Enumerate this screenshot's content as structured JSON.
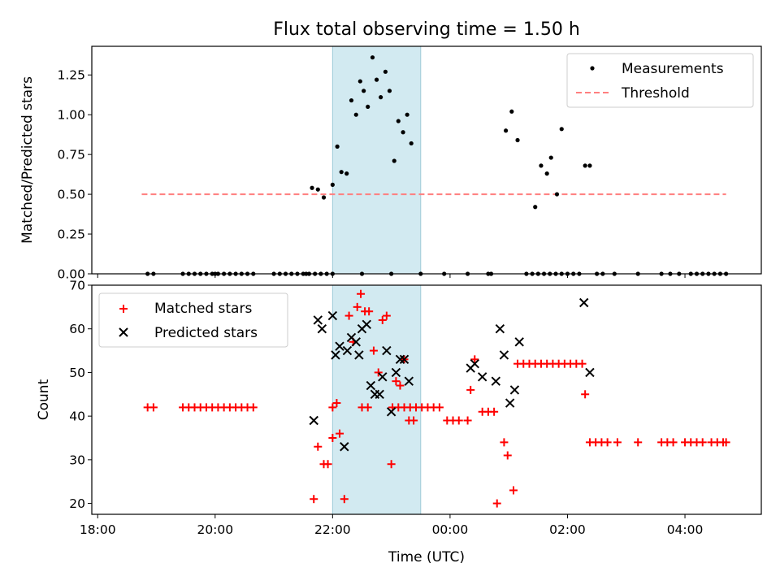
{
  "chart_data": [
    {
      "type": "scatter",
      "title": "Flux total observing time = 1.50 h",
      "xlabel": "",
      "ylabel": "Matched/Predicted stars",
      "x_unit": "hours_since_midnight_utc",
      "xlim": [
        -6.1,
        5.3
      ],
      "ylim": [
        0,
        1.43
      ],
      "yticks": [
        "0.00",
        "0.25",
        "0.50",
        "0.75",
        "1.00",
        "1.25"
      ],
      "highlight_span": [
        -2.0,
        -0.5
      ],
      "colors": {
        "measurements": "#000000",
        "threshold": "#ff7f7f",
        "span": "#add8e6"
      },
      "legend": {
        "position": "top-right",
        "entries": [
          "Measurements",
          "Threshold"
        ]
      },
      "threshold": {
        "label": "Threshold",
        "value": 0.5,
        "x": [
          -5.25,
          4.7
        ]
      },
      "series": [
        {
          "name": "Measurements",
          "points": [
            [
              -5.15,
              0
            ],
            [
              -5.05,
              0
            ],
            [
              -4.55,
              0
            ],
            [
              -4.45,
              0
            ],
            [
              -4.35,
              0
            ],
            [
              -4.25,
              0
            ],
            [
              -4.15,
              0
            ],
            [
              -4.05,
              0
            ],
            [
              -3.95,
              0
            ],
            [
              -3.85,
              0
            ],
            [
              -3.75,
              0
            ],
            [
              -3.65,
              0
            ],
            [
              -3.55,
              0
            ],
            [
              -3.45,
              0
            ],
            [
              -3.35,
              0
            ],
            [
              -4.0,
              0
            ],
            [
              -2.45,
              0
            ],
            [
              -2.0,
              0
            ],
            [
              -1.5,
              0
            ],
            [
              -1.0,
              0
            ],
            [
              -0.5,
              0
            ],
            [
              -2.1,
              0
            ],
            [
              -2.2,
              0
            ],
            [
              -2.3,
              0
            ],
            [
              -2.4,
              0
            ],
            [
              -2.5,
              0
            ],
            [
              -2.6,
              0
            ],
            [
              -2.7,
              0
            ],
            [
              -2.8,
              0
            ],
            [
              -2.9,
              0
            ],
            [
              -3.0,
              0
            ],
            [
              -2.35,
              0.54
            ],
            [
              -2.25,
              0.53
            ],
            [
              -2.15,
              0.48
            ],
            [
              -2.0,
              0.56
            ],
            [
              -1.92,
              0.8
            ],
            [
              -1.85,
              0.64
            ],
            [
              -1.76,
              0.63
            ],
            [
              -1.68,
              1.09
            ],
            [
              -1.6,
              1.0
            ],
            [
              -1.53,
              1.21
            ],
            [
              -1.47,
              1.15
            ],
            [
              -1.4,
              1.05
            ],
            [
              -1.32,
              1.36
            ],
            [
              -1.25,
              1.22
            ],
            [
              -1.18,
              1.11
            ],
            [
              -1.1,
              1.27
            ],
            [
              -1.03,
              1.15
            ],
            [
              -0.95,
              0.71
            ],
            [
              -0.88,
              0.96
            ],
            [
              -0.8,
              0.89
            ],
            [
              -0.73,
              1.0
            ],
            [
              -0.66,
              0.82
            ],
            [
              -0.1,
              0
            ],
            [
              0.3,
              0
            ],
            [
              0.65,
              0
            ],
            [
              0.7,
              0
            ],
            [
              1.3,
              0
            ],
            [
              1.4,
              0
            ],
            [
              1.5,
              0
            ],
            [
              1.6,
              0
            ],
            [
              1.7,
              0
            ],
            [
              1.8,
              0
            ],
            [
              1.9,
              0
            ],
            [
              2.0,
              0
            ],
            [
              2.1,
              0
            ],
            [
              2.2,
              0
            ],
            [
              2.5,
              0
            ],
            [
              2.6,
              0
            ],
            [
              2.8,
              0
            ],
            [
              3.2,
              0
            ],
            [
              3.6,
              0
            ],
            [
              3.75,
              0
            ],
            [
              3.9,
              0
            ],
            [
              4.1,
              0
            ],
            [
              4.2,
              0
            ],
            [
              4.3,
              0
            ],
            [
              4.4,
              0
            ],
            [
              4.5,
              0
            ],
            [
              4.6,
              0
            ],
            [
              4.7,
              0
            ],
            [
              0.95,
              0.9
            ],
            [
              1.05,
              1.02
            ],
            [
              1.15,
              0.84
            ],
            [
              1.45,
              0.42
            ],
            [
              1.55,
              0.68
            ],
            [
              1.65,
              0.63
            ],
            [
              1.72,
              0.73
            ],
            [
              1.82,
              0.5
            ],
            [
              1.9,
              0.91
            ],
            [
              2.3,
              0.68
            ],
            [
              2.38,
              0.68
            ]
          ]
        }
      ]
    },
    {
      "type": "scatter",
      "title": "",
      "xlabel": "Time (UTC)",
      "ylabel": "Count",
      "x_unit": "hours_since_midnight_utc",
      "xlim": [
        -6.1,
        5.3
      ],
      "ylim": [
        17.5,
        70
      ],
      "yticks": [
        "20",
        "30",
        "40",
        "50",
        "60",
        "70"
      ],
      "xticks": [
        {
          "value": -6,
          "label": "18:00"
        },
        {
          "value": -4,
          "label": "20:00"
        },
        {
          "value": -2,
          "label": "22:00"
        },
        {
          "value": 0,
          "label": "00:00"
        },
        {
          "value": 2,
          "label": "02:00"
        },
        {
          "value": 4,
          "label": "04:00"
        }
      ],
      "highlight_span": [
        -2.0,
        -0.5
      ],
      "colors": {
        "matched": "#ff0000",
        "predicted": "#000000",
        "span": "#add8e6"
      },
      "legend": {
        "position": "top-left",
        "entries": [
          "Matched stars",
          "Predicted stars"
        ]
      },
      "series": [
        {
          "name": "Matched stars",
          "marker": "plus",
          "points": [
            [
              -5.15,
              42
            ],
            [
              -5.05,
              42
            ],
            [
              -4.55,
              42
            ],
            [
              -4.45,
              42
            ],
            [
              -4.35,
              42
            ],
            [
              -4.25,
              42
            ],
            [
              -4.15,
              42
            ],
            [
              -4.05,
              42
            ],
            [
              -3.95,
              42
            ],
            [
              -3.85,
              42
            ],
            [
              -3.75,
              42
            ],
            [
              -3.65,
              42
            ],
            [
              -3.55,
              42
            ],
            [
              -3.45,
              42
            ],
            [
              -3.35,
              42
            ],
            [
              -2.0,
              42
            ],
            [
              -1.5,
              42
            ],
            [
              -1.4,
              42
            ],
            [
              -0.98,
              42
            ],
            [
              -0.88,
              42
            ],
            [
              -0.78,
              42
            ],
            [
              -0.68,
              42
            ],
            [
              -0.58,
              42
            ],
            [
              -0.48,
              42
            ],
            [
              -0.38,
              42
            ],
            [
              -0.28,
              42
            ],
            [
              -0.18,
              42
            ],
            [
              -2.32,
              21
            ],
            [
              -2.25,
              33
            ],
            [
              -2.15,
              29
            ],
            [
              -2.08,
              29
            ],
            [
              -2.0,
              35
            ],
            [
              -1.93,
              43
            ],
            [
              -1.88,
              36
            ],
            [
              -1.8,
              21
            ],
            [
              -1.72,
              63
            ],
            [
              -1.65,
              57
            ],
            [
              -1.58,
              65
            ],
            [
              -1.52,
              68
            ],
            [
              -1.45,
              64
            ],
            [
              -1.38,
              64
            ],
            [
              -1.3,
              55
            ],
            [
              -1.22,
              50
            ],
            [
              -1.15,
              62
            ],
            [
              -1.08,
              63
            ],
            [
              -1.0,
              29
            ],
            [
              -0.92,
              48
            ],
            [
              -0.85,
              47
            ],
            [
              -0.78,
              53
            ],
            [
              -0.7,
              39
            ],
            [
              -0.62,
              39
            ],
            [
              -0.05,
              39
            ],
            [
              0.05,
              39
            ],
            [
              0.15,
              39
            ],
            [
              0.3,
              39
            ],
            [
              0.35,
              46
            ],
            [
              0.42,
              53
            ],
            [
              0.55,
              41
            ],
            [
              0.65,
              41
            ],
            [
              0.75,
              41
            ],
            [
              0.8,
              20
            ],
            [
              0.92,
              34
            ],
            [
              0.98,
              31
            ],
            [
              1.08,
              23
            ],
            [
              1.15,
              52
            ],
            [
              1.25,
              52
            ],
            [
              1.35,
              52
            ],
            [
              1.45,
              52
            ],
            [
              1.55,
              52
            ],
            [
              1.65,
              52
            ],
            [
              1.75,
              52
            ],
            [
              1.85,
              52
            ],
            [
              1.95,
              52
            ],
            [
              2.05,
              52
            ],
            [
              2.15,
              52
            ],
            [
              2.25,
              52
            ],
            [
              2.3,
              45
            ],
            [
              2.38,
              34
            ],
            [
              2.48,
              34
            ],
            [
              2.58,
              34
            ],
            [
              2.68,
              34
            ],
            [
              2.85,
              34
            ],
            [
              3.2,
              34
            ],
            [
              3.6,
              34
            ],
            [
              3.7,
              34
            ],
            [
              3.8,
              34
            ],
            [
              4.0,
              34
            ],
            [
              4.1,
              34
            ],
            [
              4.2,
              34
            ],
            [
              4.3,
              34
            ],
            [
              4.45,
              34
            ],
            [
              4.55,
              34
            ],
            [
              4.65,
              34
            ],
            [
              4.7,
              34
            ]
          ]
        },
        {
          "name": "Predicted stars",
          "marker": "x",
          "points": [
            [
              -2.32,
              39
            ],
            [
              -2.25,
              62
            ],
            [
              -2.18,
              60
            ],
            [
              -2.0,
              63
            ],
            [
              -1.95,
              54
            ],
            [
              -1.88,
              56
            ],
            [
              -1.8,
              33
            ],
            [
              -1.75,
              55
            ],
            [
              -1.68,
              58
            ],
            [
              -1.6,
              57
            ],
            [
              -1.55,
              54
            ],
            [
              -1.5,
              60
            ],
            [
              -1.42,
              61
            ],
            [
              -1.35,
              47
            ],
            [
              -1.28,
              45
            ],
            [
              -1.2,
              45
            ],
            [
              -1.15,
              49
            ],
            [
              -1.08,
              55
            ],
            [
              -1.0,
              41
            ],
            [
              -0.92,
              50
            ],
            [
              -0.85,
              53
            ],
            [
              -0.78,
              53
            ],
            [
              -0.7,
              48
            ],
            [
              0.35,
              51
            ],
            [
              0.42,
              52
            ],
            [
              0.55,
              49
            ],
            [
              0.78,
              48
            ],
            [
              0.85,
              60
            ],
            [
              0.92,
              54
            ],
            [
              1.02,
              43
            ],
            [
              1.1,
              46
            ],
            [
              1.18,
              57
            ],
            [
              2.28,
              66
            ],
            [
              2.38,
              50
            ]
          ]
        }
      ]
    }
  ]
}
